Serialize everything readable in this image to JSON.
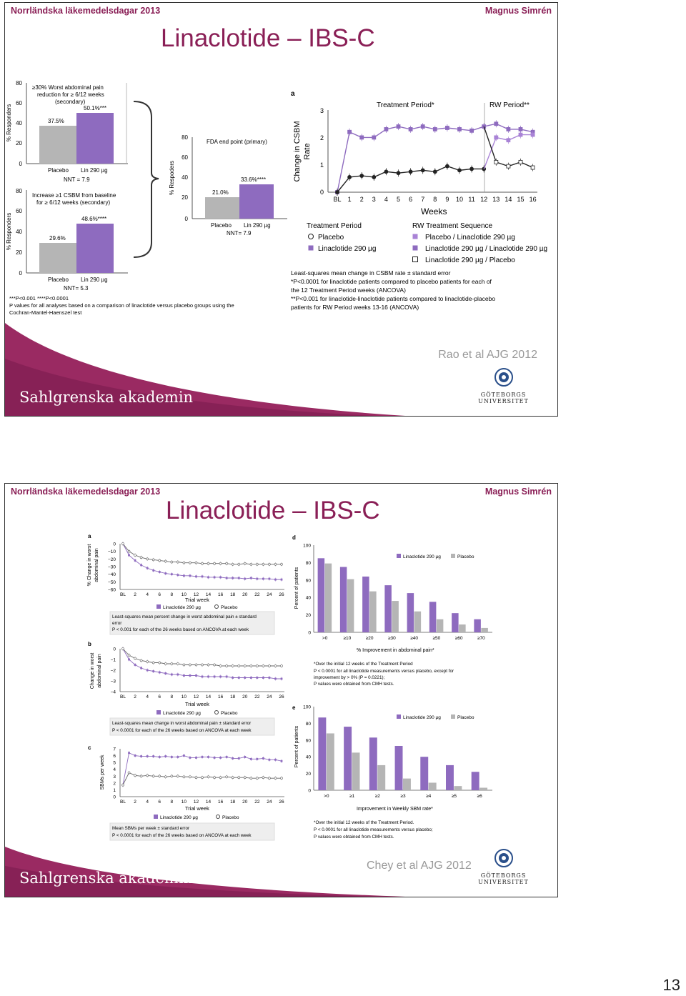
{
  "slides": [
    {
      "header_left": "Norrländska läkemedelsdagar 2013",
      "header_right": "Magnus Simrén",
      "title": "Linaclotide – IBS-C",
      "citation": "Rao et al AJG 2012",
      "footer_brand": "Sahlgrenska akademin",
      "university": "GÖTEBORGS UNIVERSITET",
      "figure": {
        "panel1": {
          "y_ticks": [
            "80",
            "60",
            "40",
            "20",
            "0"
          ],
          "y_label": "% Responders",
          "box_text": [
            "≥30% Worst abdominal pain",
            "reduction for ≥ 6/12 weeks",
            "(secondary)"
          ],
          "bars": [
            {
              "label": "Placebo",
              "value": 37.5,
              "value_label": "37.5%"
            },
            {
              "label": "Lin 290 µg",
              "value": 50.1,
              "value_label": "50.1%***"
            }
          ],
          "nnt": "NNT = 7.9"
        },
        "panel2": {
          "y_ticks": [
            "80",
            "60",
            "40",
            "20",
            "0"
          ],
          "y_label": "% Responders",
          "box_text": [
            "Increase ≥1 CSBM from baseline",
            "for ≥ 6/12 weeks (secondary)"
          ],
          "bars": [
            {
              "label": "Placebo",
              "value": 29.6,
              "value_label": "29.6%"
            },
            {
              "label": "Lin 290 µg",
              "value": 48.6,
              "value_label": "48.6%****"
            }
          ],
          "nnt": "NNT= 5.3"
        },
        "panel3": {
          "y_ticks": [
            "80",
            "60",
            "40",
            "20",
            "0"
          ],
          "y_label": "% Respoders",
          "box_text": [
            "FDA end point (primary)"
          ],
          "bars": [
            {
              "label": "Placebo",
              "value": 21.0,
              "value_label": "21.0%"
            },
            {
              "label": "Lin 290 µg",
              "value": 33.6,
              "value_label": "33.6%****"
            }
          ],
          "nnt": "NNT= 7.9"
        },
        "footnotes_left": [
          "***P<0.001     ****P<0.0001",
          "P values for all analyses based on a comparison of linaclotide versus placebo groups using the",
          "Cochran-Mantel-Haenszel test"
        ],
        "line_panel": {
          "panel_letter": "a",
          "treatment_label": "Treatment Period*",
          "rw_label": "RW Period**",
          "y_ticks": [
            "3",
            "2",
            "1",
            "0"
          ],
          "y_label": "Change in CSBM",
          "y_label2": "Rate",
          "x_ticks": [
            "BL",
            "1",
            "2",
            "3",
            "4",
            "5",
            "6",
            "7",
            "8",
            "9",
            "10",
            "11",
            "12",
            "13",
            "14",
            "15",
            "16"
          ],
          "x_label": "Weeks",
          "legend_treatment_title": "Treatment Period",
          "legend_treatment": [
            "Placebo",
            "Linaclotide 290 µg"
          ],
          "legend_rw_title": "RW Treatment Sequence",
          "legend_rw": [
            "Placebo / Linaclotide 290 µg",
            "Linaclotide 290 µg / Linaclotide 290 µg",
            "Linaclotide 290 µg / Placebo"
          ],
          "footnotes": [
            "Least-squares mean change in CSBM rate ± standard error",
            "*P<0.0001 for linaclotide patients compared to placebo patients for each of",
            "the 12 Treatment Period weeks (ANCOVA)",
            "**P<0.001 for linaclotide-linaclotide patients compared to linaclotide-placebo",
            "patients for RW Period weeks 13-16 (ANCOVA)"
          ]
        }
      }
    },
    {
      "header_left": "Norrländska läkemedelsdagar 2013",
      "header_right": "Magnus Simrén",
      "title": "Linaclotide – IBS-C",
      "citation": "Chey et al AJG 2012",
      "footer_brand": "Sahlgrenska akademin",
      "university": "GÖTEBORGS UNIVERSITET",
      "figure": {
        "a": {
          "letter": "a",
          "y_ticks": [
            "0",
            "−10",
            "−20",
            "−30",
            "−40",
            "−50",
            "−60"
          ],
          "y_label": [
            "% Change in worst",
            "abdominal pain"
          ],
          "x_label": "Trial week",
          "legend": [
            "Linaclotide 290 µg",
            "Placebo"
          ],
          "note": [
            "Least-squares mean percent change in worst abdominal pain ± standard",
            "error",
            "P < 0.001 for each of the 26 weeks based on ANCOVA at each week"
          ]
        },
        "b": {
          "letter": "b",
          "y_ticks": [
            "0",
            "−1",
            "−2",
            "−3",
            "−4"
          ],
          "y_label": [
            "Change in worst",
            "abdominal pain"
          ],
          "x_label": "Trial week",
          "legend": [
            "Linaclotide 290 µg",
            "Placebo"
          ],
          "note": [
            "Least-squares mean change in worst abdominal pain ± standard error",
            "P < 0.0001 for each of the 26 weeks based on ANCOVA at each week"
          ]
        },
        "c": {
          "letter": "c",
          "y_ticks": [
            "7",
            "6",
            "5",
            "4",
            "3",
            "2",
            "1",
            "0"
          ],
          "y_label": [
            "SBMs per week"
          ],
          "x_label": "Trial week",
          "legend": [
            "Linaclotide 290 µg",
            "Placebo"
          ],
          "note": [
            "Mean SBMs per week ± standard error",
            "P < 0.0001 for each of the 26 weeks based on ANCOVA at each week"
          ]
        },
        "x_ticks_weeks": [
          "BL",
          "2",
          "4",
          "6",
          "8",
          "10",
          "12",
          "14",
          "16",
          "18",
          "20",
          "22",
          "24",
          "26"
        ],
        "d": {
          "letter": "d",
          "y_ticks": [
            "100",
            "80",
            "60",
            "40",
            "20",
            "0"
          ],
          "y_label": "Percent of patients",
          "x_label": "% Improvement in abdominal pain*",
          "categories": [
            ">0",
            "≥10",
            "≥20",
            "≥30",
            "≥40",
            "≥50",
            "≥60",
            "≥70"
          ],
          "legend": [
            "Linaclotide 290 µg",
            "Placebo"
          ],
          "notes": [
            "*Over the initial 12 weeks of the Treatment Period",
            "P < 0.0001 for all linaclotide measurements versus placebo, except for",
            "improvement by > 0% (P = 0.0221);",
            "P values were obtained from CMH tests."
          ]
        },
        "e": {
          "letter": "e",
          "y_ticks": [
            "100",
            "80",
            "60",
            "40",
            "20",
            "0"
          ],
          "y_label": "Percent of patients",
          "x_label": "Improvement in Weekly SBM rate*",
          "categories": [
            ">0",
            "≥1",
            "≥2",
            "≥3",
            "≥4",
            "≥5",
            "≥6"
          ],
          "legend": [
            "Linaclotide 290 µg",
            "Placebo"
          ],
          "notes": [
            "*Over the initial 12 weeks of the Treatment Period.",
            "P < 0.0001 for all linaclotide measurements versus placebo;",
            "P values were obtained from CMH tests."
          ]
        }
      }
    }
  ],
  "colors": {
    "linaclotide": "#8e6bbf",
    "placebo": "#b5b5b5",
    "brand": "#8a1f56",
    "footer": "#9a2a62"
  },
  "chart_data": [
    {
      "type": "bar",
      "categories": [
        "Placebo",
        "Lin 290 µg"
      ],
      "values": [
        37.5,
        50.1
      ],
      "ylabel": "% Responders",
      "ylim": [
        0,
        80
      ]
    },
    {
      "type": "bar",
      "categories": [
        "Placebo",
        "Lin 290 µg"
      ],
      "values": [
        29.6,
        48.6
      ],
      "ylabel": "% Responders",
      "ylim": [
        0,
        80
      ]
    },
    {
      "type": "bar",
      "categories": [
        "Placebo",
        "Lin 290 µg"
      ],
      "values": [
        21.0,
        33.6
      ],
      "ylabel": "% Respoders",
      "ylim": [
        0,
        80
      ]
    },
    {
      "type": "line",
      "title": "Treatment Period* / RW Period**",
      "xlabel": "Weeks",
      "ylabel": "Change in CSBM Rate",
      "ylim": [
        0,
        3
      ],
      "x": [
        "BL",
        "1",
        "2",
        "3",
        "4",
        "5",
        "6",
        "7",
        "8",
        "9",
        "10",
        "11",
        "12",
        "13",
        "14",
        "15",
        "16"
      ],
      "series": [
        {
          "name": "Linaclotide 290 µg",
          "values": [
            0,
            2.2,
            2.0,
            2.0,
            2.3,
            2.4,
            2.3,
            2.4,
            2.3,
            2.35,
            2.3,
            2.25,
            2.4,
            2.5,
            2.3,
            2.3,
            2.2
          ]
        },
        {
          "name": "Placebo",
          "values": [
            0,
            0.55,
            0.6,
            0.55,
            0.75,
            0.7,
            0.75,
            0.8,
            0.75,
            0.95,
            0.8,
            0.85,
            0.85,
            null,
            null,
            null,
            null
          ]
        },
        {
          "name": "Placebo / Linaclotide 290 µg",
          "values": [
            null,
            null,
            null,
            null,
            null,
            null,
            null,
            null,
            null,
            null,
            null,
            null,
            0.85,
            2.0,
            1.9,
            2.1,
            2.1
          ]
        },
        {
          "name": "Linaclotide 290 µg / Placebo",
          "values": [
            null,
            null,
            null,
            null,
            null,
            null,
            null,
            null,
            null,
            null,
            null,
            null,
            2.4,
            1.1,
            0.95,
            1.1,
            0.9
          ]
        }
      ]
    },
    {
      "type": "line",
      "xlabel": "Trial week",
      "ylabel": "% Change in worst abdominal pain",
      "ylim": [
        -60,
        0
      ],
      "x": [
        "BL",
        "1",
        "2",
        "3",
        "4",
        "5",
        "6",
        "7",
        "8",
        "9",
        "10",
        "11",
        "12",
        "13",
        "14",
        "15",
        "16",
        "17",
        "18",
        "19",
        "20",
        "21",
        "22",
        "23",
        "24",
        "25",
        "26"
      ],
      "series": [
        {
          "name": "Linaclotide 290 µg",
          "values": [
            0,
            -15,
            -22,
            -28,
            -32,
            -35,
            -37,
            -39,
            -40,
            -41,
            -42,
            -42,
            -43,
            -43,
            -44,
            -44,
            -44,
            -45,
            -45,
            -45,
            -46,
            -45,
            -46,
            -46,
            -46,
            -47,
            -47
          ]
        },
        {
          "name": "Placebo",
          "values": [
            0,
            -10,
            -15,
            -18,
            -20,
            -21,
            -22,
            -23,
            -24,
            -24,
            -25,
            -25,
            -25,
            -26,
            -26,
            -26,
            -26,
            -26,
            -27,
            -27,
            -26,
            -27,
            -27,
            -27,
            -27,
            -27,
            -27
          ]
        }
      ]
    },
    {
      "type": "line",
      "xlabel": "Trial week",
      "ylabel": "Change in worst abdominal pain",
      "ylim": [
        -4,
        0
      ],
      "x": [
        "BL",
        "1",
        "2",
        "3",
        "4",
        "5",
        "6",
        "7",
        "8",
        "9",
        "10",
        "11",
        "12",
        "13",
        "14",
        "15",
        "16",
        "17",
        "18",
        "19",
        "20",
        "21",
        "22",
        "23",
        "24",
        "25",
        "26"
      ],
      "series": [
        {
          "name": "Linaclotide 290 µg",
          "values": [
            0,
            -1.0,
            -1.5,
            -1.8,
            -2.0,
            -2.1,
            -2.2,
            -2.3,
            -2.4,
            -2.4,
            -2.5,
            -2.5,
            -2.5,
            -2.6,
            -2.6,
            -2.6,
            -2.6,
            -2.6,
            -2.7,
            -2.7,
            -2.7,
            -2.7,
            -2.7,
            -2.7,
            -2.7,
            -2.8,
            -2.8
          ]
        },
        {
          "name": "Placebo",
          "values": [
            0,
            -0.6,
            -0.9,
            -1.1,
            -1.2,
            -1.3,
            -1.3,
            -1.4,
            -1.4,
            -1.4,
            -1.5,
            -1.5,
            -1.5,
            -1.5,
            -1.5,
            -1.5,
            -1.6,
            -1.6,
            -1.6,
            -1.6,
            -1.6,
            -1.6,
            -1.6,
            -1.6,
            -1.6,
            -1.6,
            -1.6
          ]
        }
      ]
    },
    {
      "type": "line",
      "xlabel": "Trial week",
      "ylabel": "SBMs per week",
      "ylim": [
        0,
        7
      ],
      "x": [
        "BL",
        "1",
        "2",
        "3",
        "4",
        "5",
        "6",
        "7",
        "8",
        "9",
        "10",
        "11",
        "12",
        "13",
        "14",
        "15",
        "16",
        "17",
        "18",
        "19",
        "20",
        "21",
        "22",
        "23",
        "24",
        "25",
        "26"
      ],
      "series": [
        {
          "name": "Linaclotide 290 µg",
          "values": [
            1.7,
            6.4,
            6.0,
            5.9,
            5.9,
            5.9,
            5.8,
            5.9,
            5.8,
            5.8,
            6.0,
            5.7,
            5.7,
            5.8,
            5.8,
            5.7,
            5.7,
            5.8,
            5.6,
            5.6,
            5.8,
            5.5,
            5.5,
            5.6,
            5.4,
            5.4,
            5.2
          ]
        },
        {
          "name": "Placebo",
          "values": [
            1.7,
            3.5,
            3.1,
            3.0,
            3.1,
            3.0,
            3.0,
            2.9,
            3.0,
            3.0,
            2.9,
            2.9,
            2.8,
            2.8,
            2.9,
            2.8,
            2.8,
            2.9,
            2.8,
            2.8,
            2.8,
            2.7,
            2.7,
            2.8,
            2.7,
            2.7,
            2.7
          ]
        }
      ]
    },
    {
      "type": "bar",
      "xlabel": "% Improvement in abdominal pain*",
      "ylabel": "Percent of patients",
      "ylim": [
        0,
        100
      ],
      "categories": [
        ">0",
        "≥10",
        "≥20",
        "≥30",
        "≥40",
        "≥50",
        "≥60",
        "≥70"
      ],
      "series": [
        {
          "name": "Linaclotide 290 µg",
          "values": [
            85,
            75,
            64,
            54,
            45,
            35,
            22,
            15
          ]
        },
        {
          "name": "Placebo",
          "values": [
            79,
            61,
            47,
            36,
            24,
            15,
            9,
            5
          ]
        }
      ]
    },
    {
      "type": "bar",
      "xlabel": "Improvement in Weekly SBM rate*",
      "ylabel": "Percent of patients",
      "ylim": [
        0,
        100
      ],
      "categories": [
        ">0",
        "≥1",
        "≥2",
        "≥3",
        "≥4",
        "≥5",
        "≥6"
      ],
      "series": [
        {
          "name": "Linaclotide 290 µg",
          "values": [
            87,
            76,
            63,
            53,
            40,
            30,
            22
          ]
        },
        {
          "name": "Placebo",
          "values": [
            68,
            45,
            30,
            14,
            9,
            5,
            3
          ]
        }
      ]
    }
  ],
  "page_number": "13"
}
